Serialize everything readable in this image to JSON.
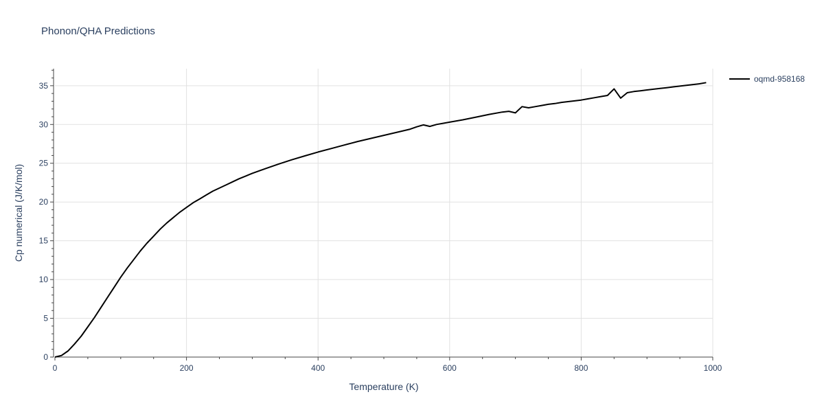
{
  "chart_data": {
    "type": "line",
    "title": "Phonon/QHA Predictions",
    "xlabel": "Temperature (K)",
    "ylabel": "Cp numerical (J/K/mol)",
    "xlim": [
      0,
      1000
    ],
    "ylim": [
      0,
      37.2
    ],
    "xticks": [
      0,
      200,
      400,
      600,
      800,
      1000
    ],
    "yticks": [
      0,
      5,
      10,
      15,
      20,
      25,
      30,
      35
    ],
    "grid": true,
    "legend_position": "top-right",
    "series": [
      {
        "name": "oqmd-958168",
        "color": "#000000",
        "x": [
          0,
          10,
          20,
          30,
          40,
          50,
          60,
          70,
          80,
          90,
          100,
          110,
          120,
          130,
          140,
          150,
          160,
          170,
          180,
          190,
          200,
          210,
          220,
          230,
          240,
          250,
          260,
          270,
          280,
          290,
          300,
          320,
          340,
          360,
          380,
          400,
          420,
          440,
          460,
          480,
          500,
          520,
          540,
          550,
          560,
          570,
          580,
          600,
          620,
          640,
          660,
          680,
          690,
          700,
          710,
          720,
          730,
          740,
          750,
          760,
          770,
          780,
          790,
          800,
          810,
          820,
          830,
          840,
          850,
          860,
          870,
          880,
          890,
          900,
          910,
          920,
          930,
          940,
          950,
          960,
          970,
          980,
          990
        ],
        "y": [
          0.0,
          0.2,
          0.8,
          1.7,
          2.7,
          3.9,
          5.1,
          6.4,
          7.7,
          9.0,
          10.3,
          11.5,
          12.6,
          13.7,
          14.7,
          15.6,
          16.5,
          17.3,
          18.0,
          18.7,
          19.3,
          19.9,
          20.4,
          20.9,
          21.4,
          21.8,
          22.2,
          22.6,
          23.0,
          23.35,
          23.7,
          24.3,
          24.9,
          25.45,
          25.95,
          26.45,
          26.9,
          27.35,
          27.8,
          28.2,
          28.6,
          29.0,
          29.4,
          29.7,
          29.95,
          29.75,
          30.0,
          30.3,
          30.6,
          30.95,
          31.3,
          31.6,
          31.7,
          31.5,
          32.3,
          32.15,
          32.3,
          32.45,
          32.6,
          32.7,
          32.85,
          32.95,
          33.05,
          33.15,
          33.3,
          33.45,
          33.6,
          33.75,
          34.6,
          33.4,
          34.1,
          34.25,
          34.35,
          34.45,
          34.55,
          34.65,
          34.75,
          34.85,
          34.95,
          35.05,
          35.15,
          35.25,
          35.4
        ]
      }
    ]
  }
}
